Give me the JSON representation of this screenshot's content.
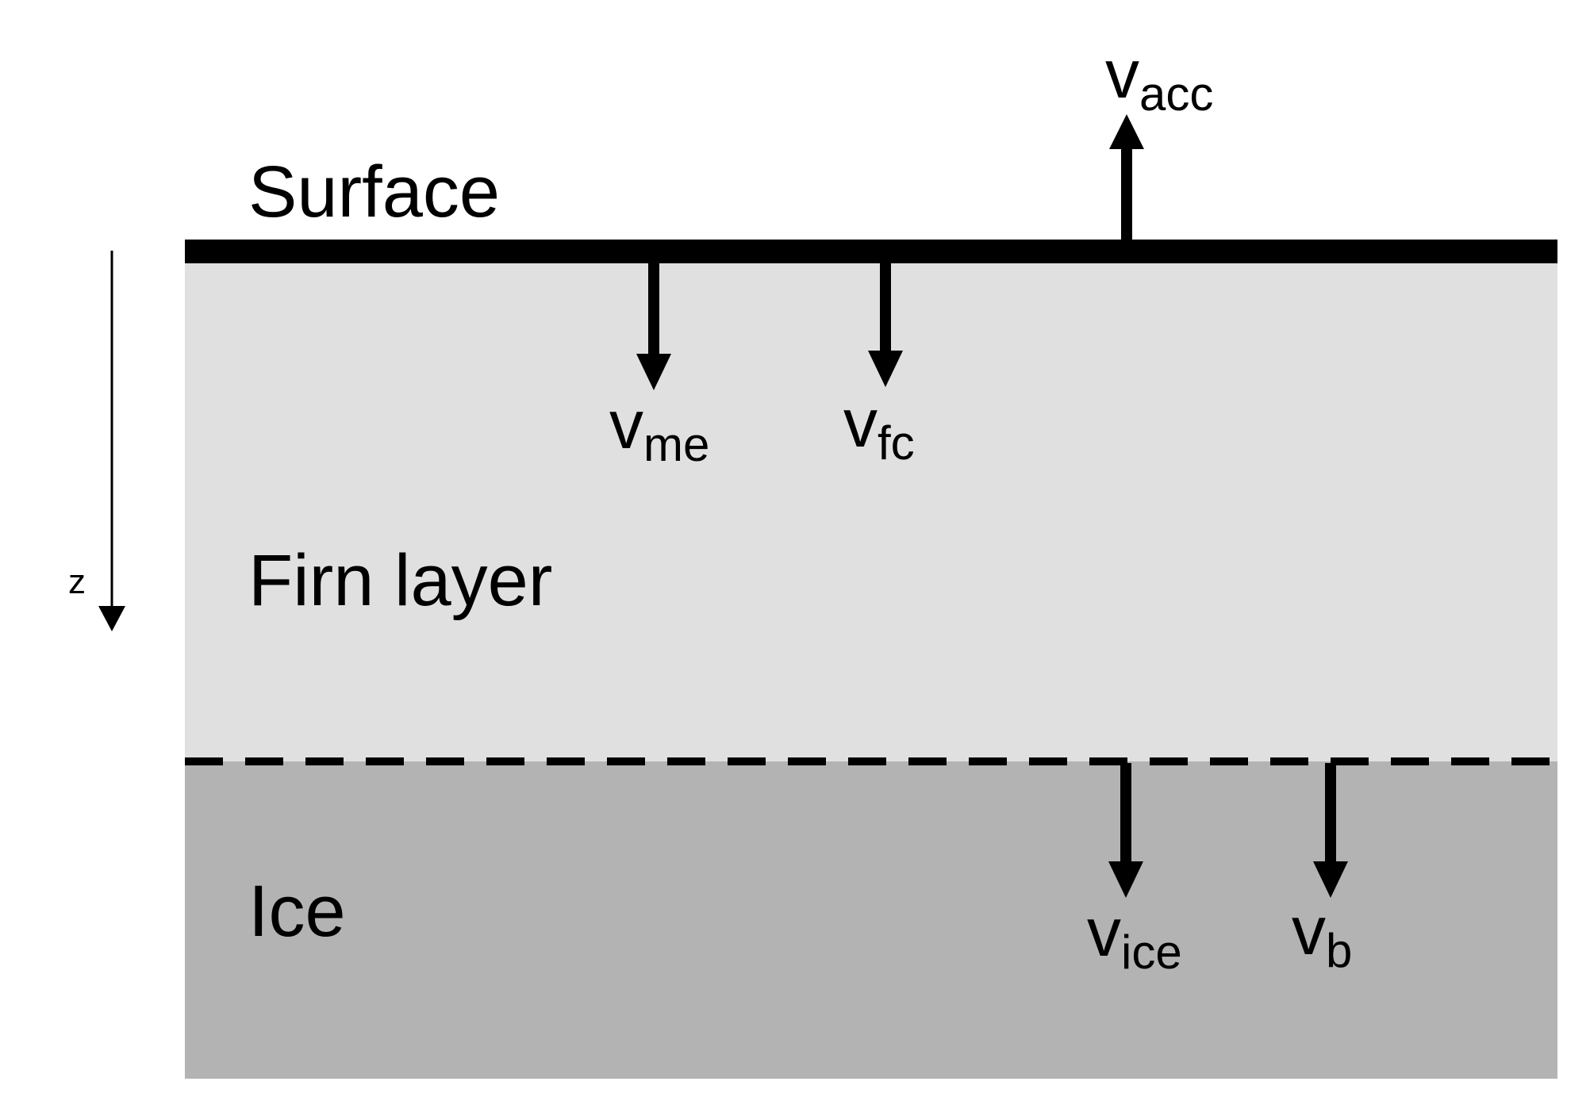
{
  "diagram": {
    "labels": {
      "surface": "Surface",
      "firn": "Firn layer",
      "ice": "Ice",
      "z_axis": "z"
    },
    "velocities": {
      "acc": {
        "main": "v",
        "sub": "acc"
      },
      "me": {
        "main": "v",
        "sub": "me"
      },
      "fc": {
        "main": "v",
        "sub": "fc"
      },
      "ice": {
        "main": "v",
        "sub": "ice"
      },
      "b": {
        "main": "v",
        "sub": "b"
      }
    },
    "colors": {
      "firn_fill": "#e0e0e0",
      "ice_fill": "#b3b3b3",
      "line": "#000000",
      "background": "#ffffff"
    }
  }
}
